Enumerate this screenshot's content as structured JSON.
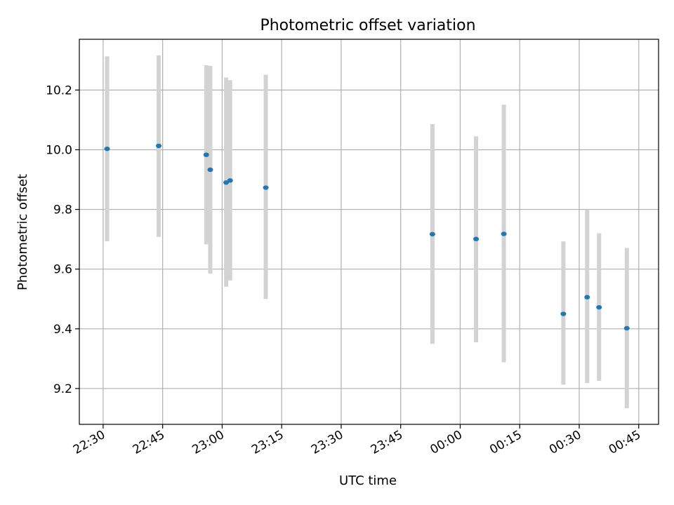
{
  "chart_data": {
    "type": "scatter",
    "title": "Photometric offset variation",
    "xlabel": "UTC time",
    "ylabel": "Photometric offset",
    "grid": true,
    "x_axis": {
      "type": "time",
      "range": [
        "2022-01-01 22:24",
        "2022-01-02 00:50"
      ],
      "ticks": [
        "22:30",
        "22:45",
        "23:00",
        "23:15",
        "23:30",
        "23:45",
        "00:00",
        "00:15",
        "00:30",
        "00:45"
      ],
      "tick_rotation": 30
    },
    "y_axis": {
      "range": [
        9.08,
        10.37
      ],
      "ticks": [
        "9.2",
        "9.4",
        "9.6",
        "9.8",
        "10.0",
        "10.2"
      ]
    },
    "series": [
      {
        "marker_color": "#1f77b4",
        "errorbar_color": "#d3d3d3",
        "points": [
          {
            "x": "22:31",
            "y": 10.003,
            "ylow": 9.693,
            "yhigh": 10.313
          },
          {
            "x": "22:44",
            "y": 10.013,
            "ylow": 9.708,
            "yhigh": 10.316
          },
          {
            "x": "22:56",
            "y": 9.983,
            "ylow": 9.683,
            "yhigh": 10.283
          },
          {
            "x": "22:57",
            "y": 9.933,
            "ylow": 9.585,
            "yhigh": 10.281
          },
          {
            "x": "23:01",
            "y": 9.89,
            "ylow": 9.541,
            "yhigh": 10.242
          },
          {
            "x": "23:02",
            "y": 9.897,
            "ylow": 9.562,
            "yhigh": 10.233
          },
          {
            "x": "23:11",
            "y": 9.873,
            "ylow": 9.5,
            "yhigh": 10.251
          },
          {
            "x": "23:53",
            "y": 9.717,
            "ylow": 9.35,
            "yhigh": 10.086
          },
          {
            "x": "00:04",
            "y": 9.701,
            "ylow": 9.355,
            "yhigh": 10.045
          },
          {
            "x": "00:11",
            "y": 9.718,
            "ylow": 9.288,
            "yhigh": 10.151
          },
          {
            "x": "00:26",
            "y": 9.45,
            "ylow": 9.213,
            "yhigh": 9.693
          },
          {
            "x": "00:32",
            "y": 9.506,
            "ylow": 9.218,
            "yhigh": 9.8
          },
          {
            "x": "00:35",
            "y": 9.472,
            "ylow": 9.226,
            "yhigh": 9.72
          },
          {
            "x": "00:42",
            "y": 9.402,
            "ylow": 9.134,
            "yhigh": 9.671
          }
        ]
      }
    ]
  }
}
